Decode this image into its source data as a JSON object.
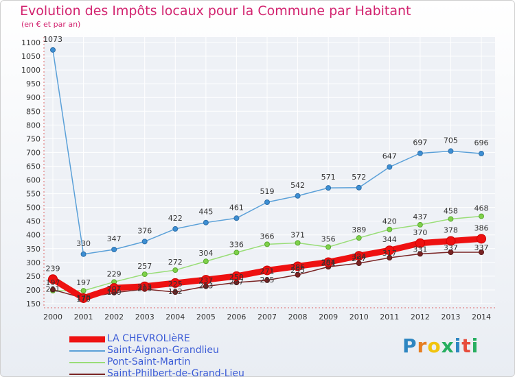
{
  "header": {
    "title": "Evolution des Impôts locaux pour la Commune par Habitant",
    "subtitle": "(en € et par an)"
  },
  "brand": {
    "logo_text": "Proxiti",
    "letters": [
      "P",
      "r",
      "o",
      "x",
      "i",
      "t",
      "i"
    ],
    "letter_colors": [
      "#2e86c1",
      "#e67e22",
      "#f1c40f",
      "#27ae60",
      "#2e86c1",
      "#e74c3c",
      "#27ae60"
    ]
  },
  "chart_data": {
    "type": "line",
    "title": "Evolution des Impôts locaux pour la Commune par Habitant",
    "subtitle": "(en € et par an)",
    "xlabel": "",
    "ylabel": "",
    "x": [
      "2000",
      "2001",
      "2002",
      "2003",
      "2004",
      "2005",
      "2006",
      "2007",
      "2008",
      "2009",
      "2010",
      "2011",
      "2012",
      "2013",
      "2014"
    ],
    "ylim": [
      150,
      1100
    ],
    "yticks": [
      "150",
      "200",
      "250",
      "300",
      "350",
      "400",
      "450",
      "500",
      "550",
      "600",
      "650",
      "700",
      "750",
      "800",
      "850",
      "900",
      "950",
      "1000",
      "1050",
      "1100"
    ],
    "grid": true,
    "legend_position": "bottom-left",
    "series": [
      {
        "name": "LA CHEVROLIèRE",
        "color": "#ee1111",
        "values": [
          239,
          170,
          207,
          213,
          225,
          237,
          250,
          271,
          286,
          301,
          324,
          344,
          370,
          378,
          386
        ],
        "labels": [
          "239",
          "170",
          "207",
          "213",
          "225",
          "237",
          "250",
          "271",
          "286",
          "301",
          "324",
          "344",
          "370",
          "378",
          "386"
        ],
        "label_pos": "none"
      },
      {
        "name": "Saint-Aignan-Grandlieu",
        "color": "#5aa0d8",
        "values": [
          1073,
          330,
          347,
          376,
          422,
          445,
          461,
          519,
          542,
          571,
          572,
          647,
          697,
          705,
          696
        ],
        "labels": [
          "1073",
          "330",
          "347",
          "376",
          "422",
          "445",
          "461",
          "519",
          "542",
          "571",
          "572",
          "647",
          "697",
          "705",
          "696"
        ],
        "label_pos": "above"
      },
      {
        "name": "Pont-Saint-Martin",
        "color": "#99dd77",
        "values": [
          197,
          197,
          229,
          257,
          272,
          304,
          336,
          366,
          371,
          356,
          389,
          420,
          437,
          458,
          468
        ],
        "labels": [
          "197",
          "197",
          "229",
          "257",
          "272",
          "304",
          "336",
          "366",
          "371",
          "356",
          "389",
          "420",
          "437",
          "458",
          "468"
        ],
        "label_pos": "above"
      },
      {
        "name": "Saint-Philbert-de-Grand-Lieu",
        "color": "#7a2424",
        "values": [
          201,
          170,
          190,
          203,
          192,
          213,
          227,
          235,
          255,
          284,
          297,
          317,
          331,
          337,
          337
        ],
        "labels": [
          "201",
          "170",
          "190",
          "203",
          "192",
          "213",
          "227",
          "235",
          "255",
          "284",
          "297",
          "317",
          "331",
          "337",
          "337"
        ],
        "label_pos": "mixed"
      }
    ]
  }
}
